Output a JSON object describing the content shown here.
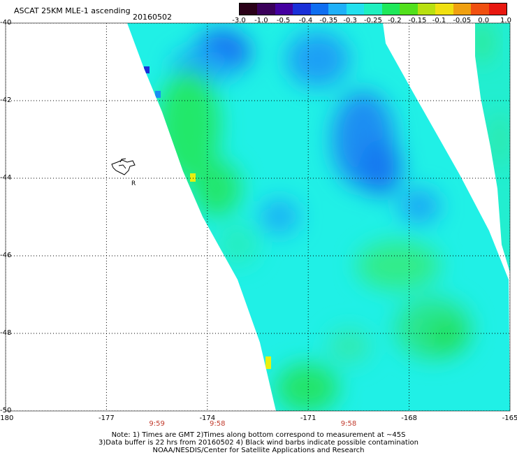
{
  "header": {
    "title": "ASCAT 25KM MLE-1 ascending",
    "date": "20160502"
  },
  "colorbar": {
    "labels": [
      "-3.0",
      "-1.0",
      "-0.5",
      "-0.4",
      "-0.35",
      "-0.3",
      "-0.25",
      "-0.2",
      "-0.15",
      "-0.1",
      "-0.05",
      "0.0",
      "1.0"
    ],
    "colors": [
      "#2a0018",
      "#3a005a",
      "#4400a0",
      "#1a30d8",
      "#0f6ef0",
      "#1fb0f8",
      "#23e0ee",
      "#1ff0c0",
      "#1ee85a",
      "#52e01c",
      "#b8e010",
      "#f0e010",
      "#f0a010",
      "#f05010",
      "#e81810"
    ]
  },
  "map": {
    "lon_labels": [
      "-180",
      "-177",
      "-174",
      "-171",
      "-168",
      "-165"
    ],
    "lat_labels": [
      "-40",
      "-42",
      "-44",
      "-46",
      "-48",
      "-50"
    ],
    "lon_range": [
      -180,
      -165
    ],
    "lat_range": [
      -40,
      -50
    ],
    "gridlines": true,
    "gridline_style": "dotted",
    "time_labels": [
      {
        "text": "9:59",
        "lon": -175.5
      },
      {
        "text": "9:58",
        "lon": -173.7
      },
      {
        "text": "9:58",
        "lon": -169.8
      }
    ],
    "island_label": "R"
  },
  "notes": {
    "line1": "Note: 1) Times are GMT 2)Times along bottom correspond to measurement at ~45S",
    "line2": "3)Data buffer is 22 hrs from 20160502 4) Black wind barbs indicate possible contamination",
    "line3": "NOAA/NESDIS/Center for Satellite Applications and Research"
  }
}
